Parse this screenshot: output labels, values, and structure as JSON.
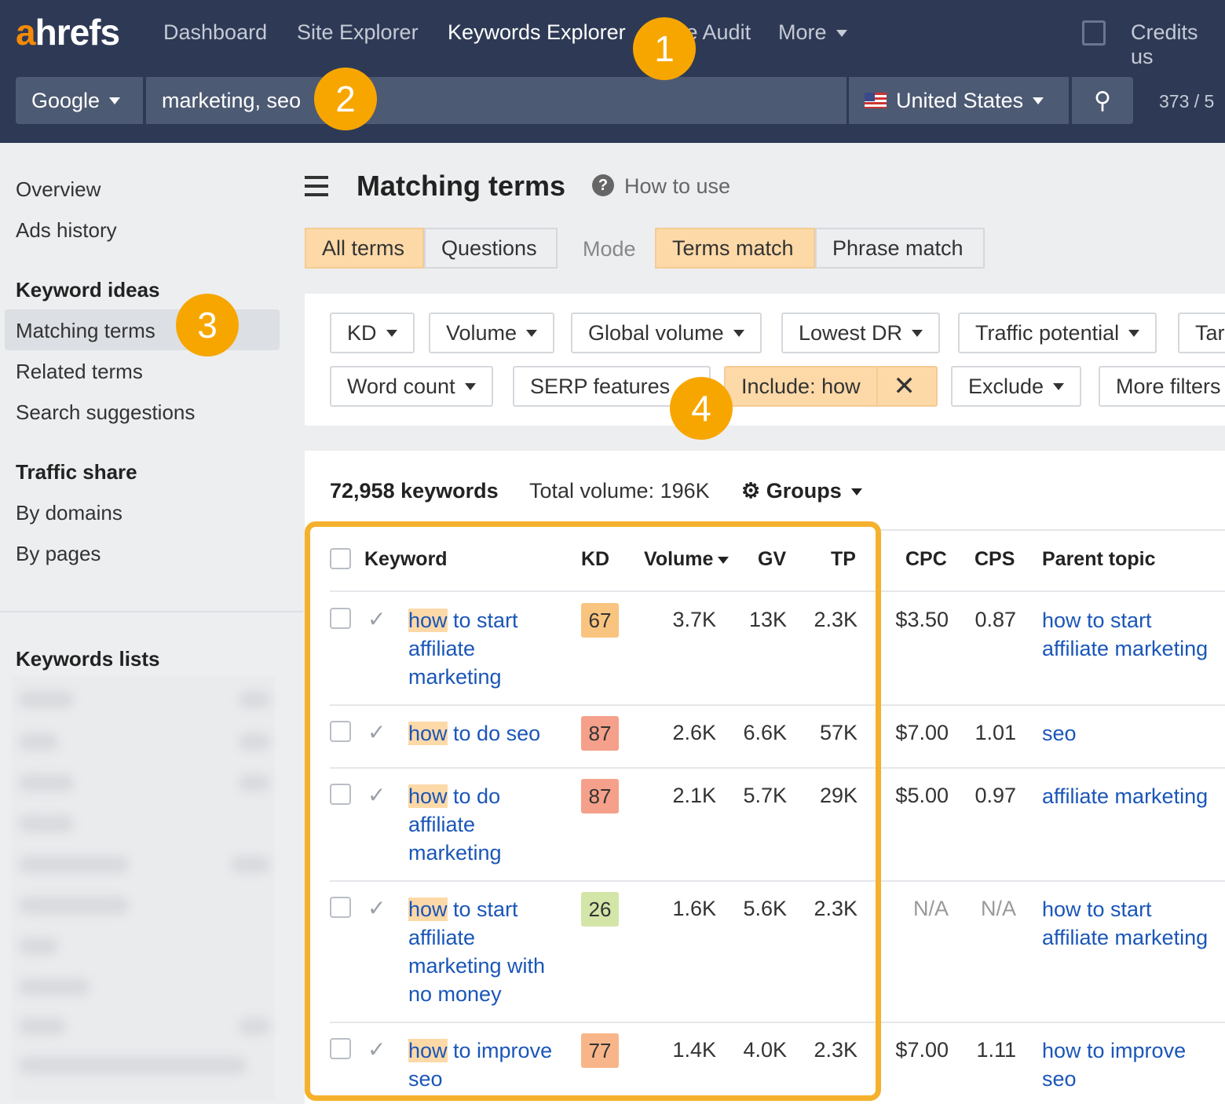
{
  "nav": {
    "logo": "ahrefs",
    "logo_a": "a",
    "logo_rest": "hrefs",
    "items": [
      "Dashboard",
      "Site Explorer",
      "Keywords Explorer",
      "Site Audit",
      "More"
    ],
    "credits": "Credits us"
  },
  "search": {
    "engine": "Google",
    "query": "marketing, seo",
    "country": "United States",
    "counter": "373 / 5"
  },
  "badges": [
    "1",
    "2",
    "3",
    "4"
  ],
  "sidebar": {
    "overview": "Overview",
    "ads_history": "Ads history",
    "keyword_ideas": "Keyword ideas",
    "matching_terms": "Matching terms",
    "related_terms": "Related terms",
    "search_suggestions": "Search suggestions",
    "traffic_share": "Traffic share",
    "by_domains": "By domains",
    "by_pages": "By pages",
    "keywords_lists": "Keywords lists"
  },
  "header": {
    "title": "Matching terms",
    "how_to_use": "How to use"
  },
  "tabs": {
    "all_terms": "All terms",
    "questions": "Questions",
    "mode": "Mode",
    "terms_match": "Terms match",
    "phrase_match": "Phrase match"
  },
  "filters": {
    "kd": "KD",
    "volume": "Volume",
    "global_volume": "Global volume",
    "lowest_dr": "Lowest DR",
    "traffic_potential": "Traffic potential",
    "target": "Tar",
    "word_count": "Word count",
    "serp_features": "SERP features",
    "include": "Include: how",
    "exclude": "Exclude",
    "more_filters": "More filters"
  },
  "summary": {
    "keywords": "72,958 keywords",
    "total_volume": "Total volume: 196K",
    "groups": "Groups"
  },
  "table": {
    "columns": [
      "Keyword",
      "KD",
      "Volume",
      "GV",
      "TP",
      "CPC",
      "CPS",
      "Parent topic"
    ],
    "rows": [
      {
        "hl": "how",
        "rest": " to start affiliate marketing",
        "kd": "67",
        "kd_color": "#f9c47f",
        "volume": "3.7K",
        "gv": "13K",
        "tp": "2.3K",
        "cpc": "$3.50",
        "cps": "0.87",
        "parent": "how to start affiliate marketing"
      },
      {
        "hl": "how",
        "rest": " to do seo",
        "kd": "87",
        "kd_color": "#f5a08a",
        "volume": "2.6K",
        "gv": "6.6K",
        "tp": "57K",
        "cpc": "$7.00",
        "cps": "1.01",
        "parent": "seo"
      },
      {
        "hl": "how",
        "rest": " to do affiliate marketing",
        "kd": "87",
        "kd_color": "#f5a08a",
        "volume": "2.1K",
        "gv": "5.7K",
        "tp": "29K",
        "cpc": "$5.00",
        "cps": "0.97",
        "parent": "affiliate marketing"
      },
      {
        "hl": "how",
        "rest": " to start affiliate marketing with no money",
        "kd": "26",
        "kd_color": "#d3e6a8",
        "volume": "1.6K",
        "gv": "5.6K",
        "tp": "2.3K",
        "cpc": "N/A",
        "cps": "N/A",
        "parent": "how to start affiliate marketing"
      },
      {
        "hl": "how",
        "rest": " to improve seo",
        "kd": "77",
        "kd_color": "#f9b58a",
        "volume": "1.4K",
        "gv": "4.0K",
        "tp": "2.3K",
        "cpc": "$7.00",
        "cps": "1.11",
        "parent": "how to improve seo"
      }
    ]
  },
  "colors": {
    "nav_bg": "#2e3a55",
    "accent": "#f7a600",
    "link": "#1a56b8",
    "highlight": "#fdd9a8"
  }
}
